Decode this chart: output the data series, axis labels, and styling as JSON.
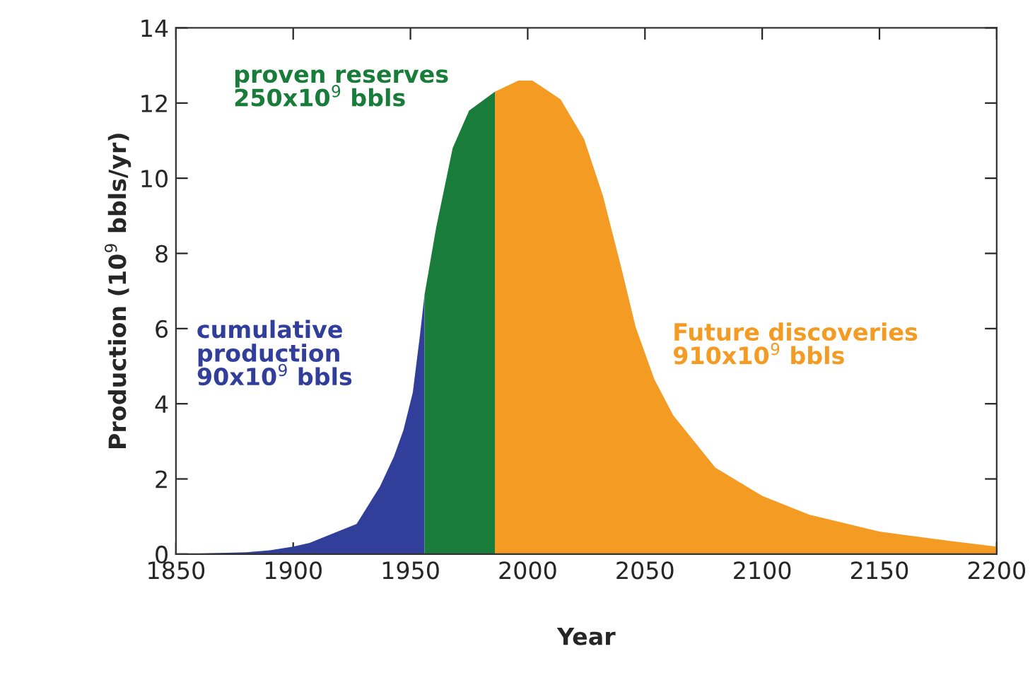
{
  "chart_data": {
    "type": "area",
    "xlabel": "Year",
    "ylabel": "Production (10$^{9}$ bbls/yr)",
    "xlim": [
      1850,
      2200
    ],
    "xticks": [
      1850,
      1900,
      1950,
      2000,
      2050,
      2100,
      2150,
      2200
    ],
    "ylim": [
      0,
      14
    ],
    "yticks": [
      0,
      2,
      4,
      6,
      8,
      10,
      12,
      14
    ],
    "grid": false,
    "legend": false,
    "series": [
      {
        "name": "cumulative\nproduction\n90x10$^{9}$ bbls",
        "color": "#323f9a",
        "x": [
          1850,
          1880,
          1890,
          1900,
          1907,
          1927,
          1937,
          1943,
          1947,
          1951,
          1954,
          1956
        ],
        "values": [
          0,
          0.05,
          0.1,
          0.2,
          0.3,
          0.8,
          1.8,
          2.6,
          3.3,
          4.3,
          5.8,
          6.9
        ]
      },
      {
        "name": "proven reserves\n250x10$^{9}$ bbls",
        "color": "#1a7c3a",
        "x": [
          1956,
          1961,
          1968,
          1975,
          1986
        ],
        "values": [
          6.9,
          8.7,
          10.8,
          11.8,
          12.3
        ]
      },
      {
        "name": "Future discoveries\n910x10$^{9}$ bbls",
        "color": "#f39b22",
        "x": [
          1986,
          1996,
          2002,
          2014,
          2024,
          2032,
          2040,
          2046,
          2054,
          2062,
          2080,
          2100,
          2120,
          2150,
          2180,
          2200
        ],
        "values": [
          12.3,
          12.6,
          12.6,
          12.1,
          11.05,
          9.55,
          7.6,
          6.05,
          4.65,
          3.7,
          2.3,
          1.55,
          1.05,
          0.6,
          0.35,
          0.2
        ]
      }
    ]
  }
}
